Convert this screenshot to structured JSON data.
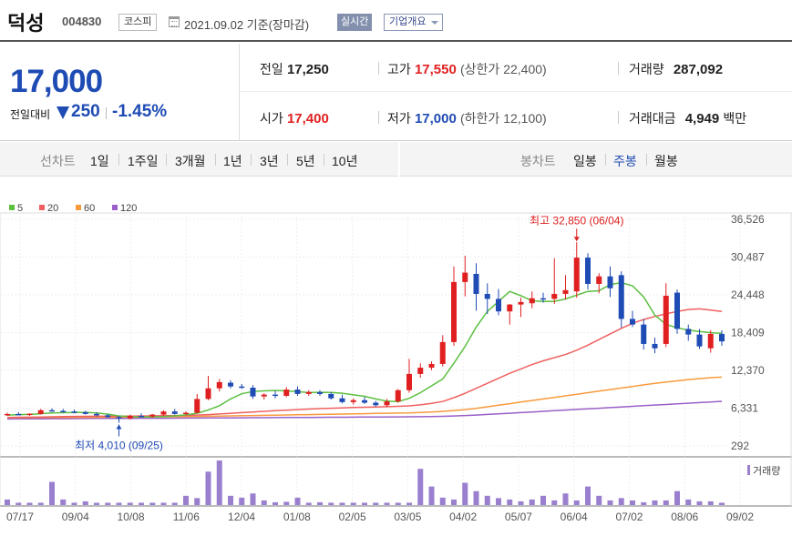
{
  "header": {
    "stock_name": "덕성",
    "stock_code": "004830",
    "market": "코스피",
    "calendar_icon": "calendar-icon",
    "date_text": "2021.09.02 기준(장마감)",
    "realtime_label": "실시간",
    "overview_label": "기업개요"
  },
  "quote": {
    "current_price": "17,000",
    "change_label": "전일대비",
    "change_direction_icon": "down-triangle-icon",
    "change_amount": "250",
    "change_rate": "-1.45%",
    "rows": [
      [
        {
          "label": "전일",
          "value": "17,250",
          "color": "dark"
        },
        {
          "label": "고가",
          "value": "17,550",
          "color": "red",
          "sub": "(상한가 22,400)"
        },
        {
          "label": "거래량",
          "value": "287,092",
          "color": "dark"
        }
      ],
      [
        {
          "label": "시가",
          "value": "17,400",
          "color": "red"
        },
        {
          "label": "저가",
          "value": "17,000",
          "color": "blue",
          "sub": "(하한가 12,100)"
        },
        {
          "label": "거래대금",
          "value": "4,949",
          "color": "dark",
          "sub": "백만"
        }
      ]
    ]
  },
  "period_bar": {
    "line_chart_label": "선차트",
    "line_periods": [
      "1일",
      "1주일",
      "3개월",
      "1년",
      "3년",
      "5년",
      "10년"
    ],
    "candle_chart_label": "봉차트",
    "candle_periods": [
      "일봉",
      "주봉",
      "월봉"
    ],
    "active_candle_period": "주봉"
  },
  "colors": {
    "up": "#e02020",
    "down": "#1f4bb4",
    "ma5": "#5cbf40",
    "ma20": "#f06060",
    "ma60": "#f89a3c",
    "ma120": "#9a5fc8",
    "volume": "#9a7fcf"
  },
  "chart_data": {
    "type": "candlestick",
    "interval": "weekly",
    "y_ticks": [
      "36,526",
      "30,487",
      "24,448",
      "18,409",
      "12,370",
      "6,331",
      "292"
    ],
    "ylim": [
      292,
      36526
    ],
    "x_labels": [
      "07/17",
      "09/04",
      "10/08",
      "11/06",
      "12/04",
      "01/08",
      "02/05",
      "03/05",
      "04/02",
      "05/07",
      "06/04",
      "07/02",
      "08/06",
      "09/02"
    ],
    "ma_legend": [
      {
        "label": "5",
        "color": "#5cbf40"
      },
      {
        "label": "20",
        "color": "#f06060"
      },
      {
        "label": "60",
        "color": "#f89a3c"
      },
      {
        "label": "120",
        "color": "#9a5fc8"
      }
    ],
    "high_annotation": "최고 32,850 (06/04)",
    "low_annotation": "최저 4,010 (09/25)",
    "volume_label": "거래량",
    "candles": [
      {
        "o": 5300,
        "h": 5600,
        "l": 5100,
        "c": 5400
      },
      {
        "o": 5400,
        "h": 5700,
        "l": 5200,
        "c": 5300
      },
      {
        "o": 5300,
        "h": 5500,
        "l": 5100,
        "c": 5450
      },
      {
        "o": 5400,
        "h": 6200,
        "l": 5300,
        "c": 6000
      },
      {
        "o": 6000,
        "h": 6300,
        "l": 5800,
        "c": 5900
      },
      {
        "o": 5900,
        "h": 6200,
        "l": 5600,
        "c": 5800
      },
      {
        "o": 5800,
        "h": 6100,
        "l": 5500,
        "c": 5700
      },
      {
        "o": 5700,
        "h": 5900,
        "l": 5300,
        "c": 5400
      },
      {
        "o": 5400,
        "h": 5700,
        "l": 5000,
        "c": 5200
      },
      {
        "o": 5200,
        "h": 5400,
        "l": 4800,
        "c": 4900
      },
      {
        "o": 4900,
        "h": 5100,
        "l": 4010,
        "c": 4700
      },
      {
        "o": 4700,
        "h": 5300,
        "l": 4500,
        "c": 5100
      },
      {
        "o": 5100,
        "h": 5500,
        "l": 4900,
        "c": 5000
      },
      {
        "o": 5000,
        "h": 5400,
        "l": 4800,
        "c": 5300
      },
      {
        "o": 5300,
        "h": 6000,
        "l": 5100,
        "c": 5800
      },
      {
        "o": 5800,
        "h": 6200,
        "l": 5300,
        "c": 5400
      },
      {
        "o": 5400,
        "h": 5800,
        "l": 5200,
        "c": 5600
      },
      {
        "o": 5600,
        "h": 8600,
        "l": 5500,
        "c": 7800
      },
      {
        "o": 7800,
        "h": 11500,
        "l": 7600,
        "c": 9500
      },
      {
        "o": 9500,
        "h": 11000,
        "l": 9000,
        "c": 10500
      },
      {
        "o": 10400,
        "h": 10800,
        "l": 9500,
        "c": 9800
      },
      {
        "o": 9800,
        "h": 10200,
        "l": 9400,
        "c": 9600
      },
      {
        "o": 9600,
        "h": 10000,
        "l": 7800,
        "c": 8200
      },
      {
        "o": 8200,
        "h": 8700,
        "l": 7700,
        "c": 8500
      },
      {
        "o": 8500,
        "h": 9100,
        "l": 7900,
        "c": 8300
      },
      {
        "o": 8300,
        "h": 9700,
        "l": 8100,
        "c": 9300
      },
      {
        "o": 9300,
        "h": 9800,
        "l": 8300,
        "c": 8600
      },
      {
        "o": 8600,
        "h": 9200,
        "l": 8300,
        "c": 8900
      },
      {
        "o": 8900,
        "h": 9200,
        "l": 8300,
        "c": 8600
      },
      {
        "o": 8600,
        "h": 8900,
        "l": 7700,
        "c": 7900
      },
      {
        "o": 7900,
        "h": 8500,
        "l": 7100,
        "c": 7300
      },
      {
        "o": 7300,
        "h": 7900,
        "l": 6900,
        "c": 7600
      },
      {
        "o": 7600,
        "h": 8100,
        "l": 7000,
        "c": 7200
      },
      {
        "o": 7200,
        "h": 7500,
        "l": 6600,
        "c": 6800
      },
      {
        "o": 6800,
        "h": 7800,
        "l": 6500,
        "c": 7400
      },
      {
        "o": 7400,
        "h": 9400,
        "l": 7200,
        "c": 9200
      },
      {
        "o": 9200,
        "h": 14200,
        "l": 8800,
        "c": 11800
      },
      {
        "o": 11800,
        "h": 13500,
        "l": 11200,
        "c": 12800
      },
      {
        "o": 12800,
        "h": 13800,
        "l": 12400,
        "c": 13400
      },
      {
        "o": 13400,
        "h": 18000,
        "l": 13000,
        "c": 16900
      },
      {
        "o": 16900,
        "h": 29000,
        "l": 16300,
        "c": 26500
      },
      {
        "o": 26500,
        "h": 30700,
        "l": 24200,
        "c": 28000
      },
      {
        "o": 27800,
        "h": 29500,
        "l": 21900,
        "c": 24600
      },
      {
        "o": 24600,
        "h": 26300,
        "l": 21400,
        "c": 23800
      },
      {
        "o": 23800,
        "h": 25400,
        "l": 21200,
        "c": 21800
      },
      {
        "o": 21800,
        "h": 23000,
        "l": 19700,
        "c": 22900
      },
      {
        "o": 22900,
        "h": 24000,
        "l": 20900,
        "c": 23300
      },
      {
        "o": 23100,
        "h": 25000,
        "l": 22300,
        "c": 23900
      },
      {
        "o": 23900,
        "h": 24800,
        "l": 23200,
        "c": 23800
      },
      {
        "o": 23800,
        "h": 30300,
        "l": 23000,
        "c": 24600
      },
      {
        "o": 24600,
        "h": 27600,
        "l": 23700,
        "c": 25200
      },
      {
        "o": 25000,
        "h": 32850,
        "l": 24000,
        "c": 30400
      },
      {
        "o": 30400,
        "h": 31100,
        "l": 25300,
        "c": 26200
      },
      {
        "o": 26200,
        "h": 27900,
        "l": 24700,
        "c": 27400
      },
      {
        "o": 27400,
        "h": 29000,
        "l": 24100,
        "c": 25500
      },
      {
        "o": 27600,
        "h": 28200,
        "l": 19200,
        "c": 20600
      },
      {
        "o": 20600,
        "h": 21900,
        "l": 19300,
        "c": 19700
      },
      {
        "o": 19700,
        "h": 20600,
        "l": 15700,
        "c": 16600
      },
      {
        "o": 16600,
        "h": 17600,
        "l": 15100,
        "c": 15900
      },
      {
        "o": 16600,
        "h": 26300,
        "l": 16100,
        "c": 24300
      },
      {
        "o": 24800,
        "h": 25300,
        "l": 18200,
        "c": 19000
      },
      {
        "o": 19000,
        "h": 19700,
        "l": 17100,
        "c": 18100
      },
      {
        "o": 18100,
        "h": 19000,
        "l": 15800,
        "c": 16200
      },
      {
        "o": 15900,
        "h": 18800,
        "l": 15200,
        "c": 18200
      },
      {
        "o": 18200,
        "h": 18800,
        "l": 16300,
        "c": 17000
      }
    ],
    "ma5": [
      5200,
      5300,
      5330,
      5450,
      5580,
      5600,
      5650,
      5640,
      5560,
      5370,
      5090,
      4980,
      4940,
      4950,
      4980,
      5100,
      5260,
      5520,
      6020,
      6720,
      7800,
      8630,
      9000,
      9100,
      9150,
      9100,
      8970,
      8820,
      8870,
      8830,
      8720,
      8450,
      8230,
      7800,
      7450,
      7360,
      7900,
      8800,
      9900,
      11000,
      13500,
      16200,
      19300,
      21800,
      23400,
      25000,
      24300,
      23500,
      23400,
      23400,
      23800,
      24400,
      25000,
      25100,
      26100,
      26400,
      25900,
      24100,
      21200,
      19700,
      19200,
      18800,
      18600,
      18400,
      18300
    ],
    "ma20": [
      4850,
      4870,
      4890,
      4920,
      4950,
      4980,
      5000,
      5020,
      5030,
      5040,
      5050,
      5060,
      5080,
      5100,
      5120,
      5150,
      5180,
      5220,
      5300,
      5400,
      5500,
      5620,
      5720,
      5820,
      5920,
      6000,
      6100,
      6180,
      6260,
      6320,
      6380,
      6430,
      6480,
      6520,
      6570,
      6620,
      6700,
      6850,
      7100,
      7400,
      8000,
      8700,
      9500,
      10300,
      11100,
      11900,
      12600,
      13300,
      13900,
      14400,
      14900,
      15600,
      16400,
      17300,
      18200,
      19100,
      19900,
      20500,
      21000,
      21400,
      21800,
      22100,
      22200,
      22000,
      21800
    ],
    "ma60": [
      4800,
      4810,
      4820,
      4830,
      4840,
      4850,
      4860,
      4870,
      4880,
      4890,
      4900,
      4910,
      4920,
      4935,
      4950,
      4965,
      4980,
      5000,
      5030,
      5060,
      5090,
      5120,
      5150,
      5180,
      5210,
      5240,
      5270,
      5300,
      5330,
      5360,
      5390,
      5420,
      5450,
      5480,
      5510,
      5540,
      5580,
      5640,
      5720,
      5820,
      5950,
      6100,
      6300,
      6550,
      6800,
      7050,
      7300,
      7550,
      7800,
      8050,
      8300,
      8550,
      8800,
      9050,
      9300,
      9550,
      9800,
      10050,
      10300,
      10500,
      10700,
      10900,
      11050,
      11200,
      11300
    ],
    "ma120": [
      4600,
      4610,
      4620,
      4630,
      4640,
      4650,
      4660,
      4670,
      4680,
      4690,
      4700,
      4705,
      4710,
      4715,
      4720,
      4730,
      4740,
      4750,
      4760,
      4770,
      4780,
      4790,
      4800,
      4810,
      4820,
      4830,
      4840,
      4850,
      4860,
      4870,
      4880,
      4890,
      4900,
      4910,
      4920,
      4930,
      4950,
      4970,
      4990,
      5020,
      5080,
      5150,
      5230,
      5320,
      5420,
      5520,
      5620,
      5720,
      5820,
      5920,
      6020,
      6120,
      6220,
      6320,
      6420,
      6520,
      6620,
      6720,
      6820,
      6920,
      7020,
      7120,
      7220,
      7320,
      7420
    ],
    "volume": [
      0.12,
      0.05,
      0.05,
      0.05,
      0.5,
      0.12,
      0.05,
      0.08,
      0.05,
      0.05,
      0.05,
      0.05,
      0.05,
      0.05,
      0.05,
      0.05,
      0.2,
      0.15,
      0.72,
      0.96,
      0.2,
      0.16,
      0.25,
      0.1,
      0.06,
      0.07,
      0.16,
      0.05,
      0.06,
      0.05,
      0.05,
      0.05,
      0.05,
      0.05,
      0.05,
      0.05,
      0.05,
      0.78,
      0.4,
      0.16,
      0.12,
      0.48,
      0.3,
      0.2,
      0.15,
      0.12,
      0.08,
      0.12,
      0.2,
      0.1,
      0.25,
      0.1,
      0.4,
      0.2,
      0.1,
      0.15,
      0.1,
      0.06,
      0.1,
      0.1,
      0.3,
      0.12,
      0.08,
      0.08,
      0.05
    ]
  }
}
